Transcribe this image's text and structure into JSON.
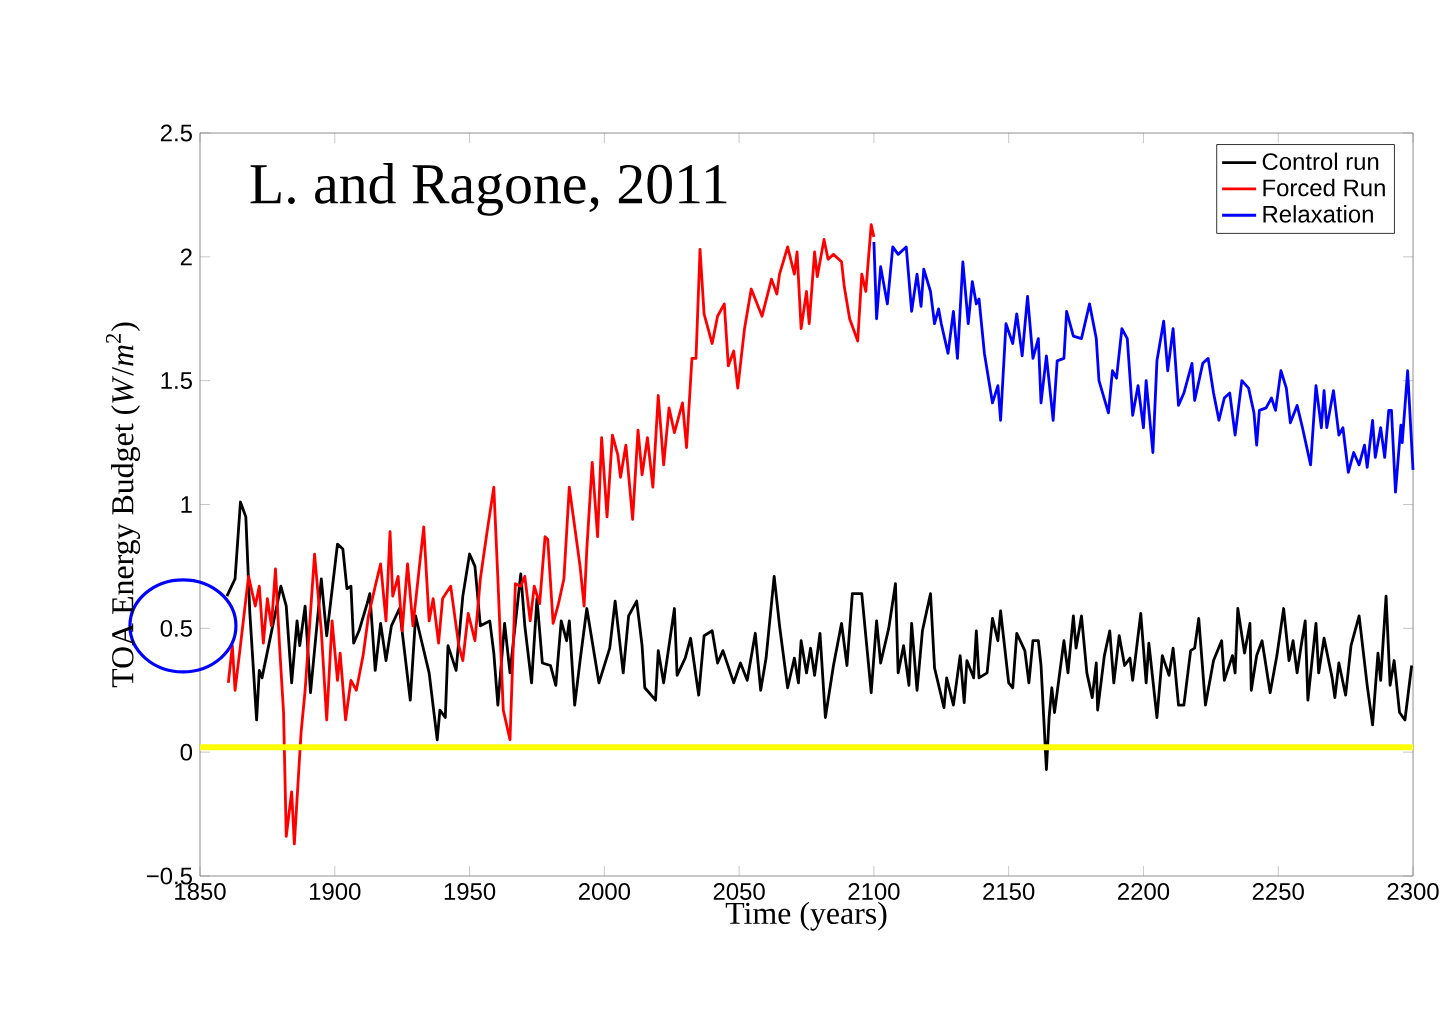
{
  "chart_data": {
    "type": "line",
    "xlabel": "Time (years)",
    "ylabel": "TOA Energy Budget (*W*/*m*$^{2}$)",
    "annotations": [
      "L. and Ragone, 2011"
    ],
    "xlim": [
      1850,
      2300
    ],
    "xticks": [
      1850,
      1900,
      1950,
      2000,
      2050,
      2100,
      2150,
      2200,
      2250,
      2300
    ],
    "ylim": [
      -0.5,
      2.5
    ],
    "yticks": [
      {
        "value": -0.5,
        "label": "−0.5"
      },
      0,
      0.5,
      1,
      1.5,
      2,
      2.5
    ],
    "legend": "top right",
    "grid": false,
    "marker": "none",
    "line_style": "solid",
    "ref_lines": [
      {
        "axis": "y",
        "value": 0.02,
        "color": "#ffff00"
      }
    ],
    "series": [
      {
        "name": "Control run",
        "color": "#000000",
        "x": [
          1860,
          1863,
          1865,
          1867,
          1868.5,
          1871,
          1872,
          1873,
          1880,
          1882,
          1884,
          1886,
          1887,
          1889,
          1891,
          1895,
          1897,
          1901,
          1903,
          1904.5,
          1906,
          1907,
          1909,
          1912,
          1913,
          1915,
          1917,
          1919,
          1921,
          1924,
          1928,
          1930,
          1931.5,
          1935,
          1938,
          1939,
          1941,
          1942,
          1945,
          1947.5,
          1950,
          1952,
          1954,
          1957.5,
          1959,
          1960.5,
          1963,
          1965,
          1969,
          1970.5,
          1973,
          1975,
          1977,
          1980,
          1982,
          1984,
          1986,
          1987,
          1989,
          1991,
          1993.5,
          1998,
          2002,
          2004,
          2007,
          2009,
          2012,
          2014,
          2015,
          2019,
          2020,
          2022,
          2026,
          2027,
          2030,
          2032,
          2035,
          2037,
          2040,
          2042,
          2044,
          2048,
          2050.5,
          2053,
          2056,
          2058,
          2060,
          2063,
          2065,
          2068,
          2070.5,
          2072,
          2073,
          2075,
          2076.5,
          2078,
          2080,
          2082,
          2085,
          2088,
          2090,
          2092,
          2095.5,
          2099,
          2101,
          2102.5,
          2105.5,
          2108,
          2109,
          2111,
          2113,
          2114,
          2116,
          2118,
          2121,
          2122.5,
          2126,
          2127,
          2129.5,
          2132,
          2133.5,
          2134.5,
          2137,
          2138,
          2139,
          2142,
          2144,
          2146,
          2147,
          2150,
          2151.5,
          2153,
          2156,
          2157.5,
          2159,
          2161,
          2162,
          2164,
          2165,
          2166,
          2167,
          2170.5,
          2172,
          2174,
          2175,
          2177,
          2179,
          2181,
          2182.5,
          2183,
          2185.5,
          2187.5,
          2189,
          2191,
          2193,
          2195,
          2196,
          2199,
          2201,
          2202,
          2205,
          2207,
          2209.5,
          2211,
          2213,
          2215,
          2217.5,
          2219,
          2220.5,
          2223,
          2226,
          2229,
          2230,
          2233,
          2234,
          2235,
          2237.5,
          2239.5,
          2240,
          2242,
          2244,
          2247,
          2249.5,
          2252,
          2254,
          2255.5,
          2257,
          2258.5,
          2260,
          2261,
          2264,
          2265,
          2267,
          2270,
          2271,
          2272.5,
          2275,
          2277,
          2280,
          2283,
          2285,
          2287,
          2288,
          2290,
          2291.5,
          2293,
          2295,
          2297,
          2299.5
        ],
        "values": [
          0.63,
          0.7,
          1.01,
          0.95,
          0.56,
          0.13,
          0.33,
          0.3,
          0.67,
          0.59,
          0.28,
          0.53,
          0.43,
          0.59,
          0.24,
          0.7,
          0.47,
          0.84,
          0.82,
          0.66,
          0.67,
          0.44,
          0.49,
          0.6,
          0.64,
          0.33,
          0.52,
          0.37,
          0.51,
          0.58,
          0.21,
          0.55,
          0.48,
          0.32,
          0.05,
          0.17,
          0.14,
          0.43,
          0.33,
          0.63,
          0.8,
          0.75,
          0.51,
          0.53,
          0.4,
          0.19,
          0.52,
          0.32,
          0.72,
          0.51,
          0.28,
          0.62,
          0.36,
          0.35,
          0.27,
          0.53,
          0.45,
          0.53,
          0.19,
          0.37,
          0.58,
          0.28,
          0.42,
          0.61,
          0.32,
          0.55,
          0.61,
          0.43,
          0.26,
          0.21,
          0.41,
          0.28,
          0.58,
          0.31,
          0.38,
          0.46,
          0.23,
          0.47,
          0.49,
          0.36,
          0.41,
          0.28,
          0.36,
          0.29,
          0.48,
          0.25,
          0.38,
          0.71,
          0.51,
          0.26,
          0.38,
          0.28,
          0.45,
          0.32,
          0.42,
          0.31,
          0.48,
          0.14,
          0.35,
          0.52,
          0.35,
          0.64,
          0.64,
          0.24,
          0.53,
          0.36,
          0.5,
          0.68,
          0.32,
          0.43,
          0.27,
          0.52,
          0.25,
          0.49,
          0.64,
          0.34,
          0.18,
          0.3,
          0.19,
          0.39,
          0.2,
          0.37,
          0.3,
          0.49,
          0.3,
          0.32,
          0.54,
          0.45,
          0.57,
          0.28,
          0.26,
          0.48,
          0.41,
          0.28,
          0.45,
          0.45,
          0.35,
          -0.07,
          0.14,
          0.26,
          0.16,
          0.45,
          0.32,
          0.55,
          0.42,
          0.55,
          0.32,
          0.22,
          0.36,
          0.17,
          0.39,
          0.49,
          0.28,
          0.47,
          0.35,
          0.38,
          0.29,
          0.56,
          0.28,
          0.44,
          0.14,
          0.39,
          0.31,
          0.42,
          0.19,
          0.19,
          0.41,
          0.42,
          0.54,
          0.19,
          0.37,
          0.45,
          0.29,
          0.39,
          0.32,
          0.58,
          0.4,
          0.52,
          0.25,
          0.39,
          0.45,
          0.24,
          0.39,
          0.58,
          0.37,
          0.45,
          0.32,
          0.43,
          0.53,
          0.21,
          0.52,
          0.32,
          0.46,
          0.3,
          0.22,
          0.36,
          0.23,
          0.43,
          0.55,
          0.27,
          0.11,
          0.4,
          0.29,
          0.63,
          0.27,
          0.37,
          0.16,
          0.13,
          0.35
        ]
      },
      {
        "name": "Forced Run",
        "color": "#ff0000",
        "x": [
          1860.5,
          1862,
          1863,
          1865,
          1868,
          1870.5,
          1872,
          1873.5,
          1875,
          1876.5,
          1878,
          1879.5,
          1881,
          1882,
          1884,
          1885,
          1887.5,
          1889,
          1892.5,
          1895,
          1897,
          1899,
          1901,
          1902,
          1904,
          1906,
          1908,
          1910.5,
          1912.5,
          1915,
          1917,
          1919,
          1920.5,
          1921.5,
          1923.5,
          1925,
          1927,
          1929,
          1933,
          1935,
          1936.5,
          1938.5,
          1940,
          1943,
          1946,
          1947.5,
          1949.5,
          1952,
          1954,
          1956.5,
          1959,
          1960.5,
          1962.5,
          1965,
          1967,
          1969,
          1970.5,
          1972.5,
          1974,
          1976,
          1978,
          1979,
          1981,
          1983,
          1985,
          1987,
          1990,
          1991,
          1992.5,
          1993.5,
          1995.5,
          1997.5,
          1999,
          2001,
          2003,
          2005,
          2006,
          2008,
          2010.5,
          2012.5,
          2014,
          2016,
          2018,
          2020,
          2022,
          2024,
          2026,
          2029,
          2030.5,
          2032.5,
          2034,
          2035.5,
          2037,
          2040,
          2042,
          2044.5,
          2046,
          2048,
          2049.5,
          2052,
          2054.5,
          2058.5,
          2062,
          2064,
          2065,
          2068,
          2070.5,
          2071.5,
          2073,
          2075,
          2076,
          2078,
          2079,
          2081.5,
          2083,
          2085,
          2088,
          2089,
          2091,
          2094,
          2095.5,
          2097,
          2099,
          2100
        ],
        "values": [
          0.28,
          0.43,
          0.25,
          0.43,
          0.71,
          0.59,
          0.67,
          0.44,
          0.62,
          0.51,
          0.74,
          0.43,
          0.16,
          -0.34,
          -0.16,
          -0.37,
          0.08,
          0.25,
          0.8,
          0.49,
          0.13,
          0.53,
          0.29,
          0.4,
          0.13,
          0.29,
          0.25,
          0.39,
          0.55,
          0.67,
          0.76,
          0.53,
          0.89,
          0.63,
          0.71,
          0.49,
          0.76,
          0.51,
          0.91,
          0.53,
          0.62,
          0.44,
          0.62,
          0.67,
          0.43,
          0.37,
          0.56,
          0.45,
          0.7,
          0.89,
          1.07,
          0.7,
          0.17,
          0.05,
          0.68,
          0.67,
          0.71,
          0.53,
          0.67,
          0.6,
          0.87,
          0.86,
          0.52,
          0.6,
          0.7,
          1.07,
          0.83,
          0.75,
          0.59,
          0.82,
          1.17,
          0.87,
          1.27,
          0.95,
          1.28,
          1.2,
          1.11,
          1.24,
          0.94,
          1.3,
          1.12,
          1.27,
          1.07,
          1.44,
          1.16,
          1.39,
          1.29,
          1.41,
          1.23,
          1.59,
          1.59,
          2.03,
          1.77,
          1.65,
          1.76,
          1.81,
          1.56,
          1.62,
          1.47,
          1.71,
          1.87,
          1.76,
          1.91,
          1.85,
          1.93,
          2.04,
          1.93,
          2.02,
          1.71,
          1.86,
          1.73,
          2.02,
          1.92,
          2.07,
          1.99,
          2.01,
          1.98,
          1.88,
          1.75,
          1.66,
          1.93,
          1.86,
          2.13,
          2.08
        ]
      },
      {
        "name": "Relaxation",
        "color": "#0000ff",
        "x": [
          2100,
          2101,
          2102.5,
          2105,
          2107,
          2109,
          2112,
          2114,
          2116,
          2117.5,
          2118.5,
          2121,
          2122.5,
          2124,
          2125,
          2127.5,
          2129.5,
          2131,
          2133,
          2135,
          2136.5,
          2138,
          2139,
          2141,
          2144,
          2146,
          2147,
          2149,
          2151.5,
          2153,
          2155,
          2157,
          2159,
          2161,
          2162,
          2164,
          2166.5,
          2168,
          2170.5,
          2171.5,
          2174,
          2177,
          2180,
          2182.5,
          2183.5,
          2187,
          2188.5,
          2190,
          2192,
          2194,
          2196,
          2198,
          2200,
          2201,
          2203.5,
          2205,
          2207.5,
          2209,
          2211,
          2213,
          2215,
          2218,
          2219,
          2222,
          2224,
          2226,
          2228,
          2230,
          2232,
          2234,
          2236.5,
          2239,
          2241,
          2242,
          2243,
          2245.5,
          2247.5,
          2249,
          2251,
          2253,
          2254.5,
          2257,
          2259,
          2262,
          2264,
          2266,
          2267,
          2268,
          2270.5,
          2272.5,
          2274,
          2276,
          2278,
          2280,
          2282,
          2283,
          2285,
          2286,
          2288,
          2289.5,
          2291,
          2292,
          2293.5,
          2295.5,
          2296,
          2298,
          2300
        ],
        "values": [
          2.06,
          1.75,
          1.96,
          1.81,
          2.04,
          2.01,
          2.04,
          1.78,
          1.93,
          1.8,
          1.95,
          1.86,
          1.73,
          1.79,
          1.73,
          1.61,
          1.78,
          1.59,
          1.98,
          1.73,
          1.9,
          1.81,
          1.83,
          1.61,
          1.41,
          1.48,
          1.34,
          1.73,
          1.65,
          1.77,
          1.6,
          1.84,
          1.59,
          1.67,
          1.41,
          1.6,
          1.34,
          1.58,
          1.59,
          1.78,
          1.68,
          1.67,
          1.81,
          1.67,
          1.5,
          1.37,
          1.54,
          1.51,
          1.71,
          1.67,
          1.36,
          1.48,
          1.31,
          1.5,
          1.21,
          1.58,
          1.74,
          1.54,
          1.71,
          1.4,
          1.45,
          1.57,
          1.42,
          1.57,
          1.59,
          1.45,
          1.34,
          1.43,
          1.45,
          1.28,
          1.5,
          1.47,
          1.37,
          1.24,
          1.38,
          1.39,
          1.43,
          1.38,
          1.54,
          1.47,
          1.33,
          1.4,
          1.31,
          1.16,
          1.48,
          1.31,
          1.46,
          1.31,
          1.46,
          1.28,
          1.31,
          1.13,
          1.21,
          1.16,
          1.24,
          1.15,
          1.34,
          1.19,
          1.31,
          1.19,
          1.38,
          1.38,
          1.05,
          1.32,
          1.25,
          1.54,
          1.14
        ]
      }
    ]
  }
}
